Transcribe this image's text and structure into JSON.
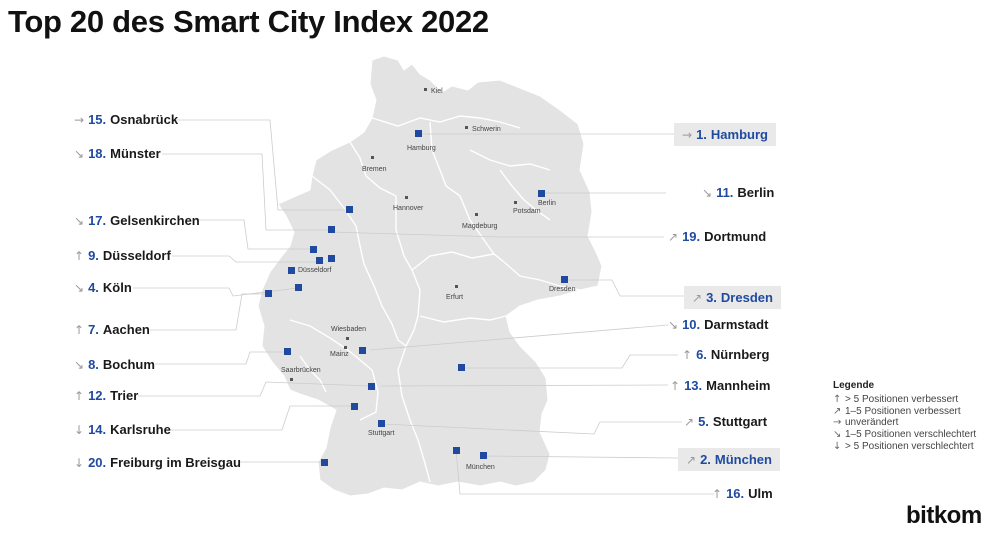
{
  "title": "Top 20 des Smart City Index 2022",
  "legend": {
    "title": "Legende",
    "items": [
      {
        "arrow": "↑",
        "text": "> 5 Positionen verbessert"
      },
      {
        "arrow": "↗",
        "text": "1–5 Positionen verbessert"
      },
      {
        "arrow": "→",
        "text": "unverändert"
      },
      {
        "arrow": "↘",
        "text": "1–5 Positionen verschlechtert"
      },
      {
        "arrow": "↓",
        "text": "> 5 Positionen verschlechtert"
      }
    ]
  },
  "logo": "bitkom",
  "colors": {
    "marker": "#1f4aa0",
    "land": "#e3e3e3",
    "border": "#ffffff",
    "leader": "#c8c8c8",
    "rank": "#1f4aa0"
  },
  "rankings": [
    {
      "rank": "1.",
      "city": "Hamburg",
      "arrow": "→"
    },
    {
      "rank": "2.",
      "city": "München",
      "arrow": "↗"
    },
    {
      "rank": "3.",
      "city": "Dresden",
      "arrow": "↗"
    },
    {
      "rank": "4.",
      "city": "Köln",
      "arrow": "↘"
    },
    {
      "rank": "5.",
      "city": "Stuttgart",
      "arrow": "↗"
    },
    {
      "rank": "6.",
      "city": "Nürnberg",
      "arrow": "↑"
    },
    {
      "rank": "7.",
      "city": "Aachen",
      "arrow": "↑"
    },
    {
      "rank": "8.",
      "city": "Bochum",
      "arrow": "↘"
    },
    {
      "rank": "9.",
      "city": "Düsseldorf",
      "arrow": "↑"
    },
    {
      "rank": "10.",
      "city": "Darmstadt",
      "arrow": "↘"
    },
    {
      "rank": "11.",
      "city": "Berlin",
      "arrow": "↘"
    },
    {
      "rank": "12.",
      "city": "Trier",
      "arrow": "↑"
    },
    {
      "rank": "13.",
      "city": "Mannheim",
      "arrow": "↑"
    },
    {
      "rank": "14.",
      "city": "Karlsruhe",
      "arrow": "↓"
    },
    {
      "rank": "15.",
      "city": "Osnabrück",
      "arrow": "→"
    },
    {
      "rank": "16.",
      "city": "Ulm",
      "arrow": "↑"
    },
    {
      "rank": "17.",
      "city": "Gelsenkirchen",
      "arrow": "↘"
    },
    {
      "rank": "18.",
      "city": "Münster",
      "arrow": "↘"
    },
    {
      "rank": "19.",
      "city": "Dortmund",
      "arrow": "↗"
    },
    {
      "rank": "20.",
      "city": "Freiburg im Breisgau",
      "arrow": "↓"
    }
  ],
  "map_labels": [
    "Kiel",
    "Schwerin",
    "Hamburg",
    "Bremen",
    "Hannover",
    "Berlin",
    "Potsdam",
    "Magdeburg",
    "Düsseldorf",
    "Erfurt",
    "Dresden",
    "Wiesbaden",
    "Mainz",
    "Saarbrücken",
    "Stuttgart",
    "München"
  ]
}
